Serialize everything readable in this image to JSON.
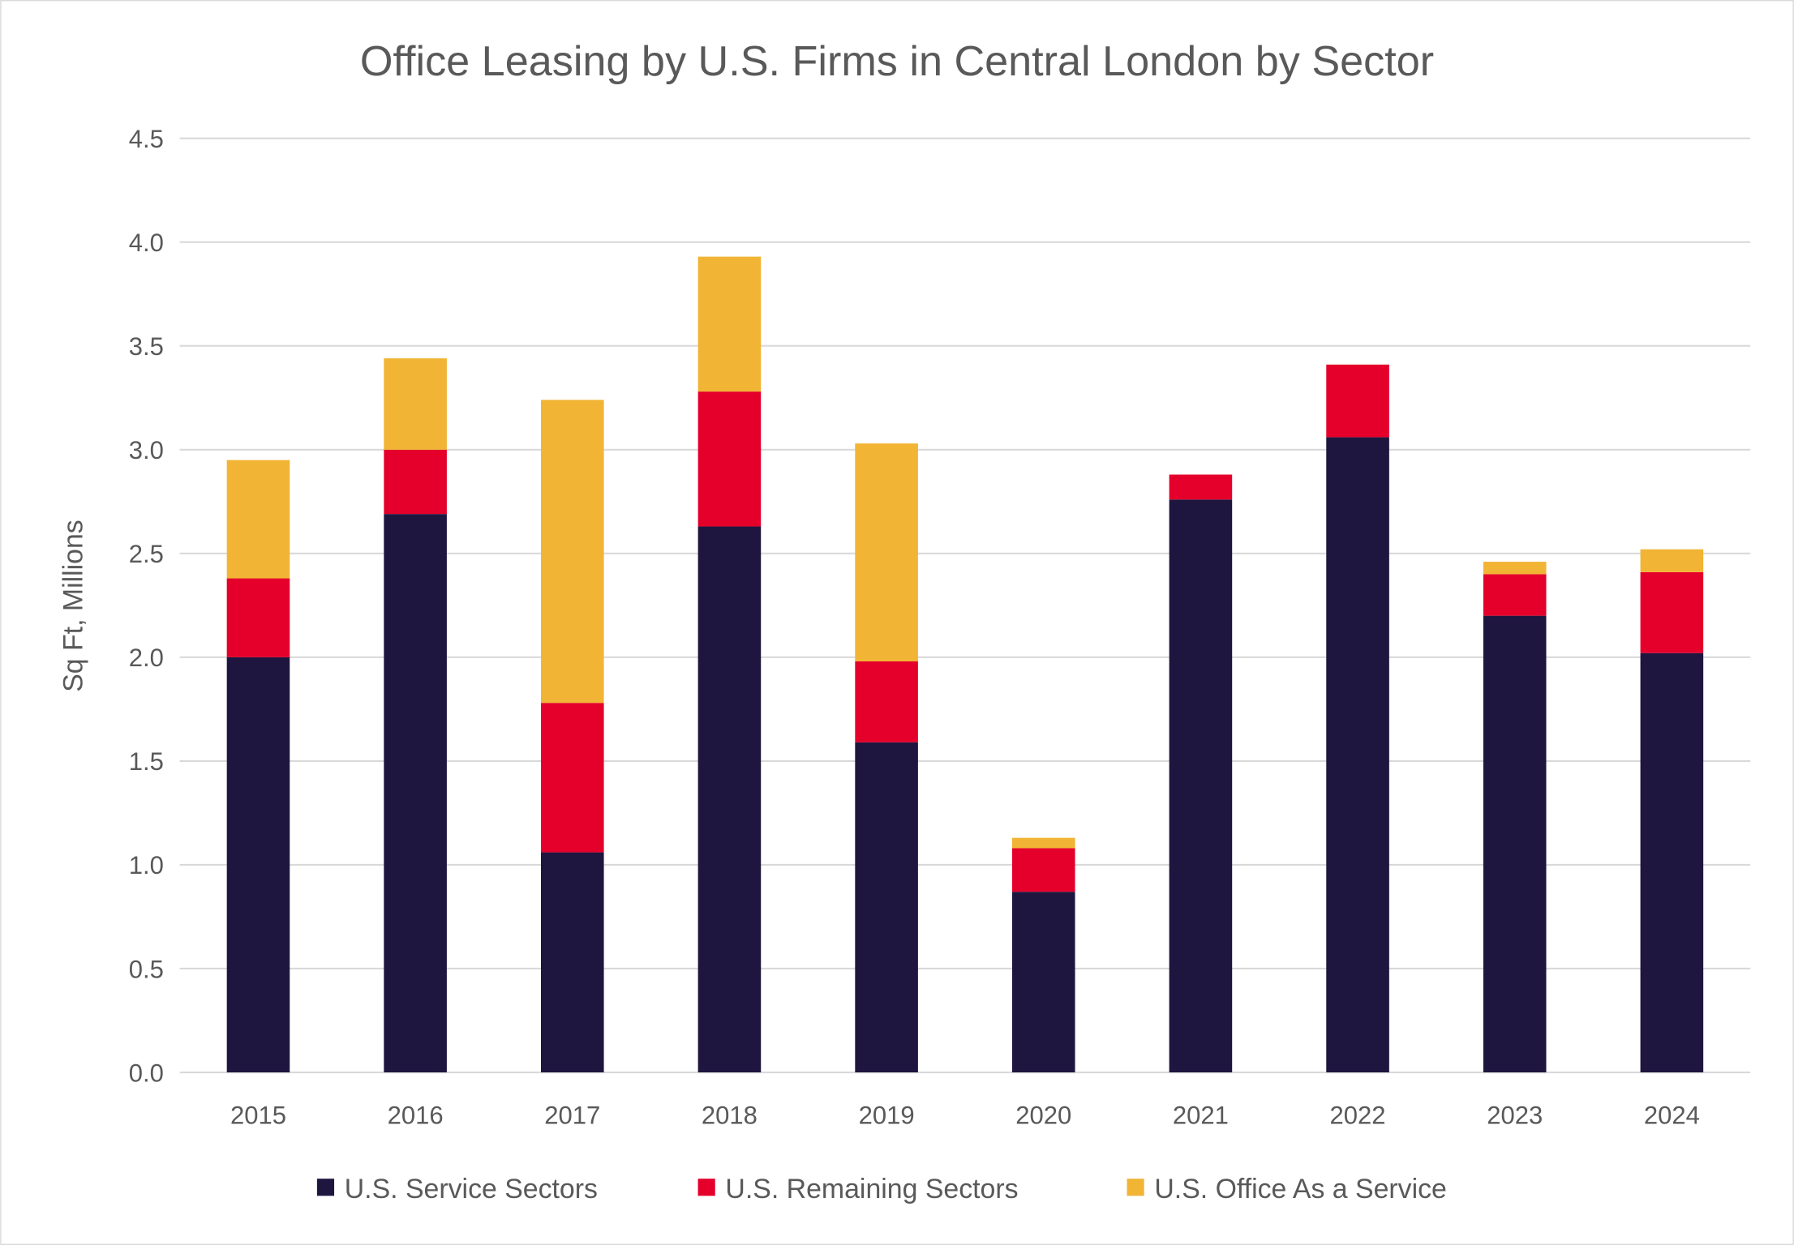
{
  "chart_data": {
    "type": "bar",
    "stacked": true,
    "title": "Office Leasing by U.S. Firms in Central London by Sector",
    "xlabel": "",
    "ylabel": "Sq Ft, Millions",
    "ylim": [
      0,
      4.5
    ],
    "yticks": [
      "0.0",
      "0.5",
      "1.0",
      "1.5",
      "2.0",
      "2.5",
      "3.0",
      "3.5",
      "4.0",
      "4.5"
    ],
    "grid": true,
    "legend": "bottom",
    "categories": [
      "2015",
      "2016",
      "2017",
      "2018",
      "2019",
      "2020",
      "2021",
      "2022",
      "2023",
      "2024"
    ],
    "series": [
      {
        "name": "U.S. Service Sectors",
        "color": "#1e163f",
        "values": [
          2.0,
          2.69,
          1.06,
          2.63,
          1.59,
          0.87,
          2.76,
          3.06,
          2.2,
          2.02
        ]
      },
      {
        "name": "U.S. Remaining Sectors",
        "color": "#e4002b",
        "values": [
          0.38,
          0.31,
          0.72,
          0.65,
          0.39,
          0.21,
          0.12,
          0.35,
          0.2,
          0.39
        ]
      },
      {
        "name": "U.S. Office As a Service",
        "color": "#f1b434",
        "values": [
          0.57,
          0.44,
          1.46,
          0.65,
          1.05,
          0.05,
          0.0,
          0.0,
          0.06,
          0.11
        ]
      }
    ]
  }
}
